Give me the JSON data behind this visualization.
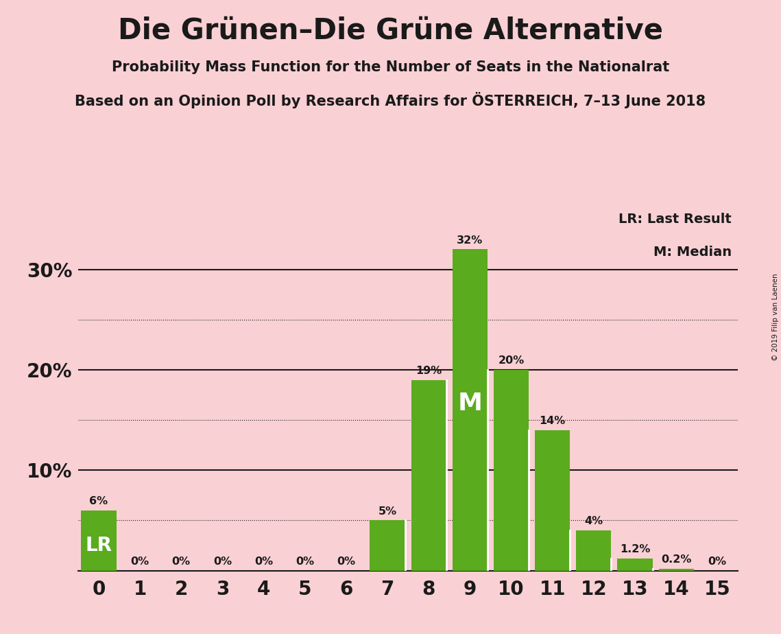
{
  "title": "Die Grünen–Die Grüne Alternative",
  "subtitle1": "Probability Mass Function for the Number of Seats in the Nationalrat",
  "subtitle2": "Based on an Opinion Poll by Research Affairs for ÖSTERREICH, 7–13 June 2018",
  "copyright": "© 2019 Filip van Laenen",
  "categories": [
    0,
    1,
    2,
    3,
    4,
    5,
    6,
    7,
    8,
    9,
    10,
    11,
    12,
    13,
    14,
    15
  ],
  "values": [
    6,
    0,
    0,
    0,
    0,
    0,
    0,
    5,
    19,
    32,
    20,
    14,
    4,
    1.2,
    0.2,
    0
  ],
  "bar_color": "#5aab1e",
  "background_color": "#f9d0d4",
  "text_color": "#1a1a1a",
  "lr_seat": 0,
  "median_seat": 9,
  "lr_label": "LR",
  "median_label": "M",
  "label_color_white": "#ffffff",
  "yticks": [
    0,
    10,
    20,
    30
  ],
  "ytick_labels": [
    "",
    "10%",
    "20%",
    "30%"
  ],
  "dotted_lines": [
    5,
    15,
    25
  ],
  "legend_lr": "LR: Last Result",
  "legend_m": "M: Median",
  "xlim": [
    -0.5,
    15.5
  ],
  "ylim": [
    0,
    36
  ]
}
